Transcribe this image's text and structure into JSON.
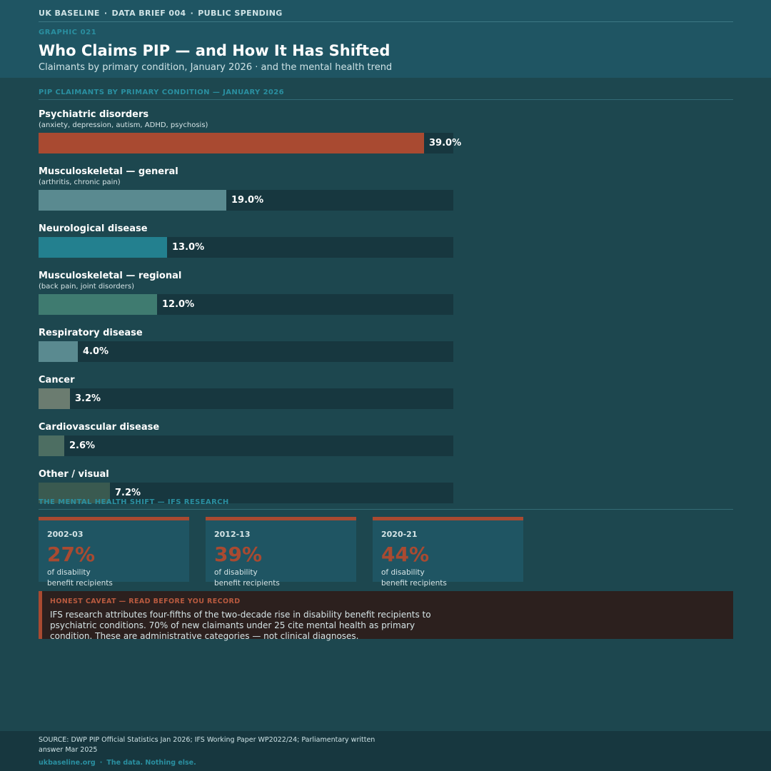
{
  "header": {
    "kicker_items": [
      "UK BASELINE",
      "DATA BRIEF 004",
      "PUBLIC SPENDING"
    ],
    "kicker_separator": "·",
    "graphic_number": "GRAPHIC 021",
    "title": "Who Claims PIP — and How It Has Shifted",
    "subtitle": "Claimants by primary condition, January 2026 · and the mental health trend"
  },
  "chart_data": {
    "type": "bar",
    "orientation": "horizontal",
    "title": "PIP CLAIMANTS BY PRIMARY CONDITION — JANUARY 2026",
    "xlim": [
      0,
      42
    ],
    "categories": [
      {
        "name": "Psychiatric disorders",
        "sub": "(anxiety, depression, autism, ADHD, psychosis)",
        "value": 39.0,
        "label": "39.0%",
        "color": "#a94a31"
      },
      {
        "name": "Musculoskeletal — general",
        "sub": "(arthritis, chronic pain)",
        "value": 19.0,
        "label": "19.0%",
        "color": "#5a8a90"
      },
      {
        "name": "Neurological disease",
        "sub": "",
        "value": 13.0,
        "label": "13.0%",
        "color": "#23808f"
      },
      {
        "name": "Musculoskeletal — regional",
        "sub": "(back pain, joint disorders)",
        "value": 12.0,
        "label": "12.0%",
        "color": "#3f7b70"
      },
      {
        "name": "Respiratory disease",
        "sub": "",
        "value": 4.0,
        "label": "4.0%",
        "color": "#5a8a90"
      },
      {
        "name": "Cancer",
        "sub": "",
        "value": 3.2,
        "label": "3.2%",
        "color": "#6b7c70"
      },
      {
        "name": "Cardiovascular disease",
        "sub": "",
        "value": 2.6,
        "label": "2.6%",
        "color": "#4d6e62"
      },
      {
        "name": "Other / visual",
        "sub": "",
        "value": 7.2,
        "label": "7.2%",
        "color": "#3a5a50"
      }
    ]
  },
  "trend": {
    "section_label": "THE MENTAL HEALTH SHIFT — IFS RESEARCH",
    "cards": [
      {
        "year": "2002-03",
        "value": "27%",
        "desc_line1": "of disability",
        "desc_line2": "benefit recipients"
      },
      {
        "year": "2012-13",
        "value": "39%",
        "desc_line1": "of disability",
        "desc_line2": "benefit recipients"
      },
      {
        "year": "2020-21",
        "value": "44%",
        "desc_line1": "of disability",
        "desc_line2": "benefit recipients"
      }
    ]
  },
  "caveat": {
    "label": "HONEST CAVEAT — READ BEFORE YOU RECORD",
    "text": "IFS research attributes four-fifths of the two-decade rise in disability benefit recipients to psychiatric conditions. 70% of new claimants under 25 cite mental health as primary condition. These are administrative categories — not clinical diagnoses."
  },
  "footer": {
    "source": "SOURCE: DWP PIP Official Statistics Jan 2026; IFS Working Paper WP2022/24; Parliamentary written answer Mar 2025",
    "site": "ukbaseline.org",
    "tagline": "The data. Nothing else.",
    "separator": "·"
  },
  "colors": {
    "background": "#1d474f",
    "header": "#1f5563",
    "accent": "#a94a31",
    "teal_label": "#2a8fa0",
    "track": "#17373f"
  }
}
